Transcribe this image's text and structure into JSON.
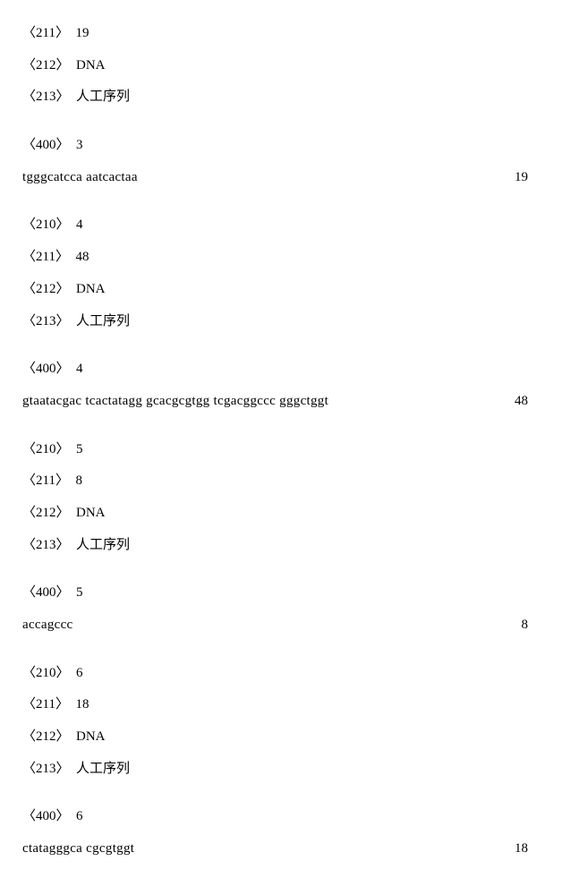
{
  "blocks": [
    {
      "type": "tag",
      "tag": "〈211〉",
      "value": "19"
    },
    {
      "type": "tag",
      "tag": "〈212〉",
      "value": "DNA"
    },
    {
      "type": "tag",
      "tag": "〈213〉",
      "value": "人工序列"
    },
    {
      "type": "spacer"
    },
    {
      "type": "tag",
      "tag": "〈400〉",
      "value": "3"
    },
    {
      "type": "seq",
      "sequence": "tgggcatcca aatcactaa",
      "length": "19"
    },
    {
      "type": "spacer"
    },
    {
      "type": "tag",
      "tag": "〈210〉",
      "value": "4"
    },
    {
      "type": "tag",
      "tag": "〈211〉",
      "value": "48"
    },
    {
      "type": "tag",
      "tag": "〈212〉",
      "value": "DNA"
    },
    {
      "type": "tag",
      "tag": "〈213〉",
      "value": "人工序列"
    },
    {
      "type": "spacer"
    },
    {
      "type": "tag",
      "tag": "〈400〉",
      "value": "4"
    },
    {
      "type": "seq",
      "sequence": "gtaatacgac tcactatagg gcacgcgtgg tcgacggccc gggctggt",
      "length": "48"
    },
    {
      "type": "spacer"
    },
    {
      "type": "tag",
      "tag": "〈210〉",
      "value": "5"
    },
    {
      "type": "tag",
      "tag": "〈211〉",
      "value": "8"
    },
    {
      "type": "tag",
      "tag": "〈212〉",
      "value": "DNA"
    },
    {
      "type": "tag",
      "tag": "〈213〉",
      "value": "人工序列"
    },
    {
      "type": "spacer"
    },
    {
      "type": "tag",
      "tag": "〈400〉",
      "value": "5"
    },
    {
      "type": "seq",
      "sequence": "accagccc",
      "length": "8"
    },
    {
      "type": "spacer"
    },
    {
      "type": "tag",
      "tag": "〈210〉",
      "value": "6"
    },
    {
      "type": "tag",
      "tag": "〈211〉",
      "value": "18"
    },
    {
      "type": "tag",
      "tag": "〈212〉",
      "value": "DNA"
    },
    {
      "type": "tag",
      "tag": "〈213〉",
      "value": "人工序列"
    },
    {
      "type": "spacer"
    },
    {
      "type": "tag",
      "tag": "〈400〉",
      "value": "6"
    },
    {
      "type": "seq",
      "sequence": "ctatagggca cgcgtggt",
      "length": "18"
    }
  ]
}
